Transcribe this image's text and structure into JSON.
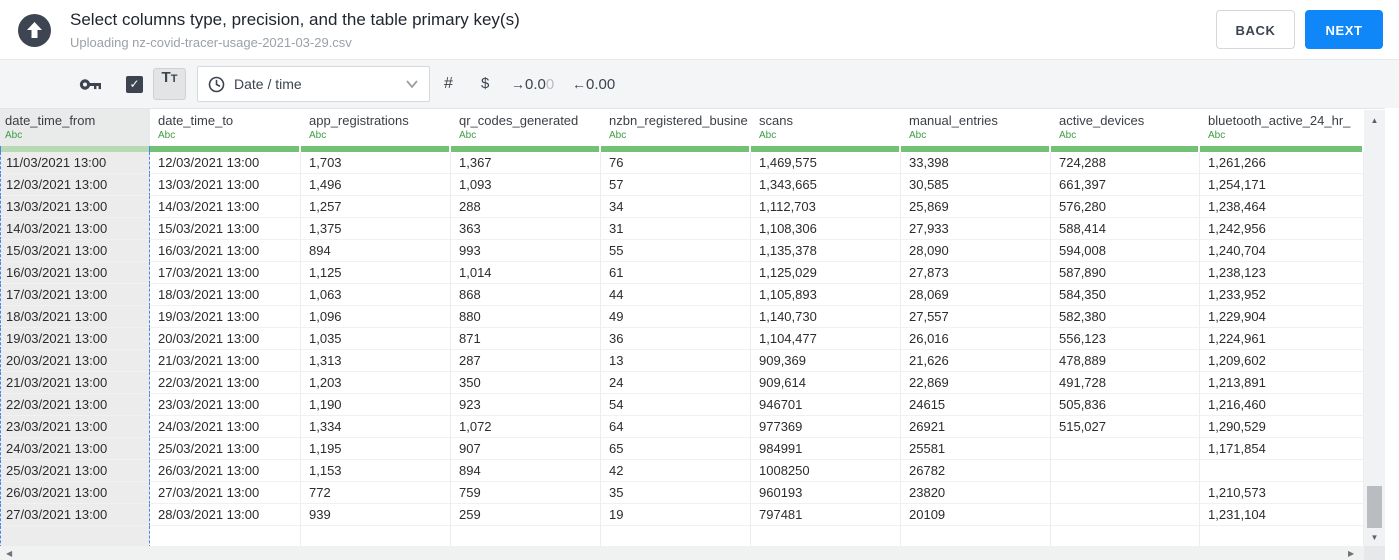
{
  "header": {
    "title": "Select columns type, precision, and the table primary key(s)",
    "subtitle": "Uploading nz-covid-tracer-usage-2021-03-29.csv",
    "back_label": "BACK",
    "next_label": "NEXT"
  },
  "toolbar": {
    "text_toggle": {
      "main": "T",
      "sub": "T"
    },
    "type_dropdown_value": "Date / time",
    "number_label": "#",
    "currency_label": "$",
    "precision_add": {
      "text": "0.0",
      "faded": "0"
    },
    "precision_remove": {
      "text": "0.00"
    }
  },
  "colors": {
    "accent_blue": "#0f87f8",
    "type_green": "#3f9c44",
    "bar_green": "#73c175",
    "selection_dash_blue": "#4a86e8",
    "icon_dark": "#3d4450"
  },
  "table": {
    "selected_column": "date_time_from",
    "columns": [
      {
        "name": "date_time_from",
        "type": "Abc"
      },
      {
        "name": "date_time_to",
        "type": "Abc"
      },
      {
        "name": "app_registrations",
        "type": "Abc"
      },
      {
        "name": "qr_codes_generated",
        "type": "Abc"
      },
      {
        "name": "nzbn_registered_busine",
        "type": "Abc"
      },
      {
        "name": "scans",
        "type": "Abc"
      },
      {
        "name": "manual_entries",
        "type": "Abc"
      },
      {
        "name": "active_devices",
        "type": "Abc"
      },
      {
        "name": "bluetooth_active_24_hr_",
        "type": "Abc"
      }
    ],
    "rows": [
      [
        "11/03/2021 13:00",
        "12/03/2021 13:00",
        "1,703",
        "1,367",
        "76",
        "1,469,575",
        "33,398",
        "724,288",
        "1,261,266"
      ],
      [
        "12/03/2021 13:00",
        "13/03/2021 13:00",
        "1,496",
        "1,093",
        "57",
        "1,343,665",
        "30,585",
        "661,397",
        "1,254,171"
      ],
      [
        "13/03/2021 13:00",
        "14/03/2021 13:00",
        "1,257",
        "288",
        "34",
        "1,112,703",
        "25,869",
        "576,280",
        "1,238,464"
      ],
      [
        "14/03/2021 13:00",
        "15/03/2021 13:00",
        "1,375",
        "363",
        "31",
        "1,108,306",
        "27,933",
        "588,414",
        "1,242,956"
      ],
      [
        "15/03/2021 13:00",
        "16/03/2021 13:00",
        "894",
        "993",
        "55",
        "1,135,378",
        "28,090",
        "594,008",
        "1,240,704"
      ],
      [
        "16/03/2021 13:00",
        "17/03/2021 13:00",
        "1,125",
        "1,014",
        "61",
        "1,125,029",
        "27,873",
        "587,890",
        "1,238,123"
      ],
      [
        "17/03/2021 13:00",
        "18/03/2021 13:00",
        "1,063",
        "868",
        "44",
        "1,105,893",
        "28,069",
        "584,350",
        "1,233,952"
      ],
      [
        "18/03/2021 13:00",
        "19/03/2021 13:00",
        "1,096",
        "880",
        "49",
        "1,140,730",
        "27,557",
        "582,380",
        "1,229,904"
      ],
      [
        "19/03/2021 13:00",
        "20/03/2021 13:00",
        "1,035",
        "871",
        "36",
        "1,104,477",
        "26,016",
        "556,123",
        "1,224,961"
      ],
      [
        "20/03/2021 13:00",
        "21/03/2021 13:00",
        "1,313",
        "287",
        "13",
        "909,369",
        "21,626",
        "478,889",
        "1,209,602"
      ],
      [
        "21/03/2021 13:00",
        "22/03/2021 13:00",
        "1,203",
        "350",
        "24",
        "909,614",
        "22,869",
        "491,728",
        "1,213,891"
      ],
      [
        "22/03/2021 13:00",
        "23/03/2021 13:00",
        "1,190",
        "923",
        "54",
        "946701",
        "24615",
        "505,836",
        "1,216,460"
      ],
      [
        "23/03/2021 13:00",
        "24/03/2021 13:00",
        "1,334",
        "1,072",
        "64",
        "977369",
        "26921",
        "515,027",
        "1,290,529"
      ],
      [
        "24/03/2021 13:00",
        "25/03/2021 13:00",
        "1,195",
        "907",
        "65",
        "984991",
        "25581",
        "",
        "1,171,854"
      ],
      [
        "25/03/2021 13:00",
        "26/03/2021 13:00",
        "1,153",
        "894",
        "42",
        "1008250",
        "26782",
        "",
        ""
      ],
      [
        "26/03/2021 13:00",
        "27/03/2021 13:00",
        "772",
        "759",
        "35",
        "960193",
        "23820",
        "",
        "1,210,573"
      ],
      [
        "27/03/2021 13:00",
        "28/03/2021 13:00",
        "939",
        "259",
        "19",
        "797481",
        "20109",
        "",
        "1,231,104"
      ]
    ]
  }
}
